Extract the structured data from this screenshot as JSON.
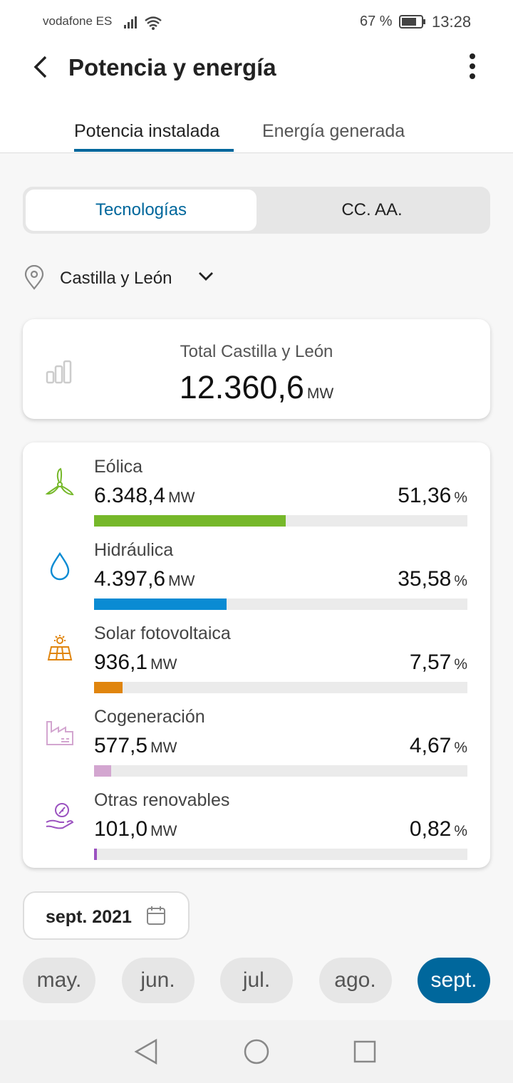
{
  "status_bar": {
    "carrier": "vodafone ES",
    "battery": "67 %",
    "time": "13:28"
  },
  "header": {
    "title": "Potencia y energía"
  },
  "tabs": [
    "Potencia instalada",
    "Energía generada"
  ],
  "segments": [
    "Tecnologías",
    "CC. AA."
  ],
  "location": "Castilla y León",
  "total": {
    "label": "Total Castilla y León",
    "value": "12.360,6",
    "unit": "MW"
  },
  "technologies": {
    "unit": "MW",
    "share_unit": "%",
    "items": [
      {
        "name": "Eólica",
        "power": "6.348,4",
        "share": {
          "value": 51.36,
          "label": "51,36"
        },
        "color": "#76b82a"
      },
      {
        "name": "Hidráulica",
        "power": "4.397,6",
        "share": {
          "value": 35.58,
          "label": "35,58"
        },
        "color": "#0a8bd3"
      },
      {
        "name": "Solar fotovoltaica",
        "power": "936,1",
        "share": {
          "value": 7.57,
          "label": "7,57"
        },
        "color": "#e0850e"
      },
      {
        "name": "Cogeneración",
        "power": "577,5",
        "share": {
          "value": 4.67,
          "label": "4,67"
        },
        "color": "#d3a6d0"
      },
      {
        "name": "Otras renovables",
        "power": "101,0",
        "share": {
          "value": 0.82,
          "label": "0,82"
        },
        "color": "#9b52c0"
      }
    ]
  },
  "date": "sept. 2021",
  "months": [
    "may.",
    "jun.",
    "jul.",
    "ago.",
    "sept."
  ]
}
